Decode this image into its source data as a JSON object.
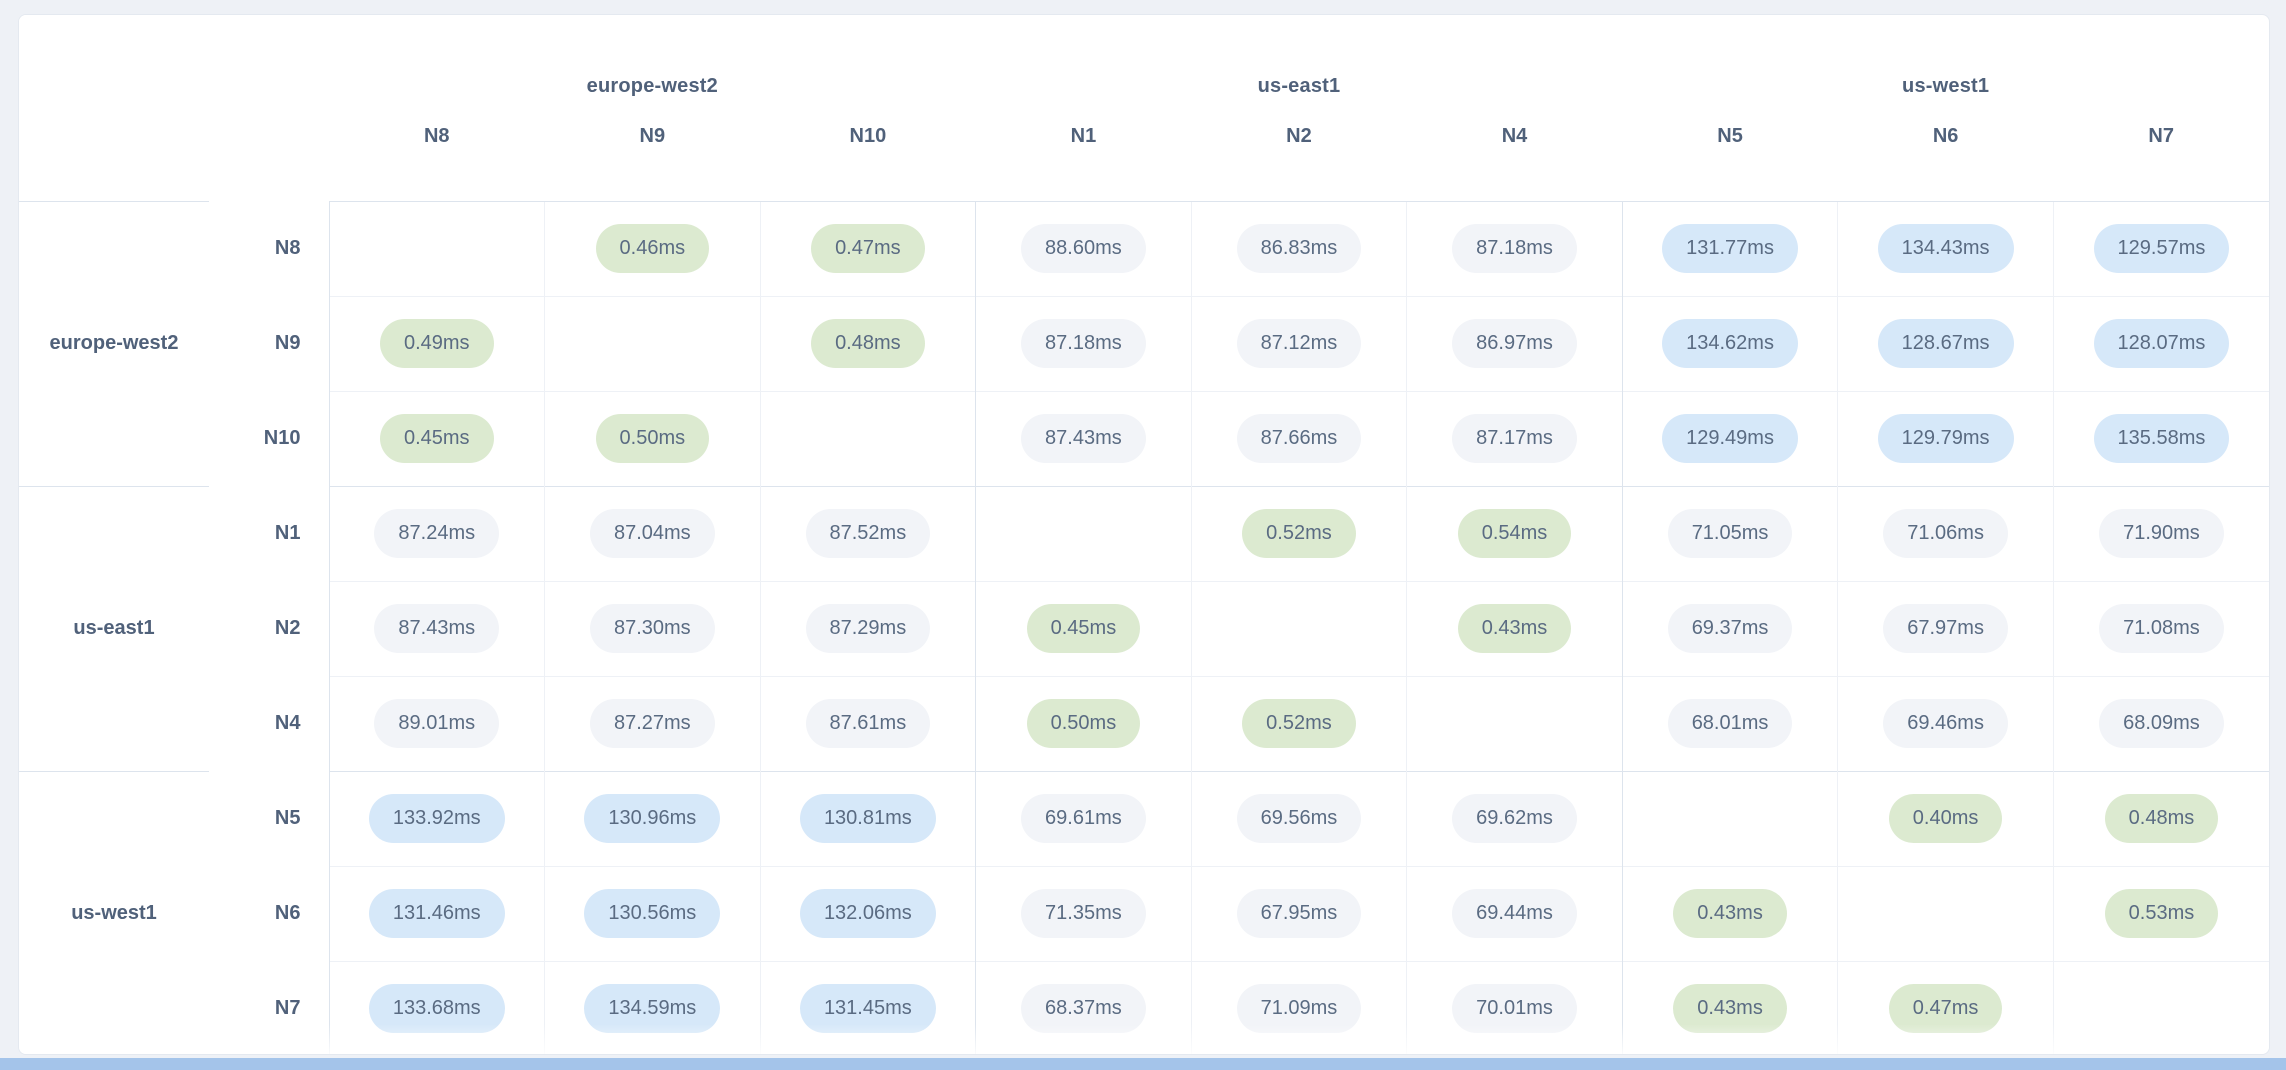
{
  "unit": "ms",
  "column_groups": [
    {
      "region": "europe-west2",
      "nodes": [
        "N8",
        "N9",
        "N10"
      ]
    },
    {
      "region": "us-east1",
      "nodes": [
        "N1",
        "N2",
        "N4"
      ]
    },
    {
      "region": "us-west1",
      "nodes": [
        "N5",
        "N6",
        "N7"
      ]
    }
  ],
  "matrix": {
    "row_groups": [
      {
        "region": "europe-west2",
        "rows": [
          {
            "node": "N8",
            "cells": [
              null,
              "0.46ms",
              "0.47ms",
              "88.60ms",
              "86.83ms",
              "87.18ms",
              "131.77ms",
              "134.43ms",
              "129.57ms"
            ]
          },
          {
            "node": "N9",
            "cells": [
              "0.49ms",
              null,
              "0.48ms",
              "87.18ms",
              "87.12ms",
              "86.97ms",
              "134.62ms",
              "128.67ms",
              "128.07ms"
            ]
          },
          {
            "node": "N10",
            "cells": [
              "0.45ms",
              "0.50ms",
              null,
              "87.43ms",
              "87.66ms",
              "87.17ms",
              "129.49ms",
              "129.79ms",
              "135.58ms"
            ]
          }
        ]
      },
      {
        "region": "us-east1",
        "rows": [
          {
            "node": "N1",
            "cells": [
              "87.24ms",
              "87.04ms",
              "87.52ms",
              null,
              "0.52ms",
              "0.54ms",
              "71.05ms",
              "71.06ms",
              "71.90ms"
            ]
          },
          {
            "node": "N2",
            "cells": [
              "87.43ms",
              "87.30ms",
              "87.29ms",
              "0.45ms",
              null,
              "0.43ms",
              "69.37ms",
              "67.97ms",
              "71.08ms"
            ]
          },
          {
            "node": "N4",
            "cells": [
              "89.01ms",
              "87.27ms",
              "87.61ms",
              "0.50ms",
              "0.52ms",
              null,
              "68.01ms",
              "69.46ms",
              "68.09ms"
            ]
          }
        ]
      },
      {
        "region": "us-west1",
        "rows": [
          {
            "node": "N5",
            "cells": [
              "133.92ms",
              "130.96ms",
              "130.81ms",
              "69.61ms",
              "69.56ms",
              "69.62ms",
              null,
              "0.40ms",
              "0.48ms"
            ]
          },
          {
            "node": "N6",
            "cells": [
              "131.46ms",
              "130.56ms",
              "132.06ms",
              "71.35ms",
              "67.95ms",
              "69.44ms",
              "0.43ms",
              null,
              "0.53ms"
            ]
          },
          {
            "node": "N7",
            "cells": [
              "133.68ms",
              "134.59ms",
              "131.45ms",
              "68.37ms",
              "71.09ms",
              "70.01ms",
              "0.43ms",
              "0.47ms",
              null
            ]
          }
        ]
      }
    ]
  },
  "legend_bands": {
    "low_max_ms": 1,
    "mid_max_ms": 100
  },
  "colors": {
    "pill_low": "#dcead0",
    "pill_mid": "#f2f4f8",
    "pill_high": "#d6e8f9",
    "text_main": "#5a6b82",
    "text_head": "#50617a",
    "bottom_bar": "#a4c4ea"
  }
}
